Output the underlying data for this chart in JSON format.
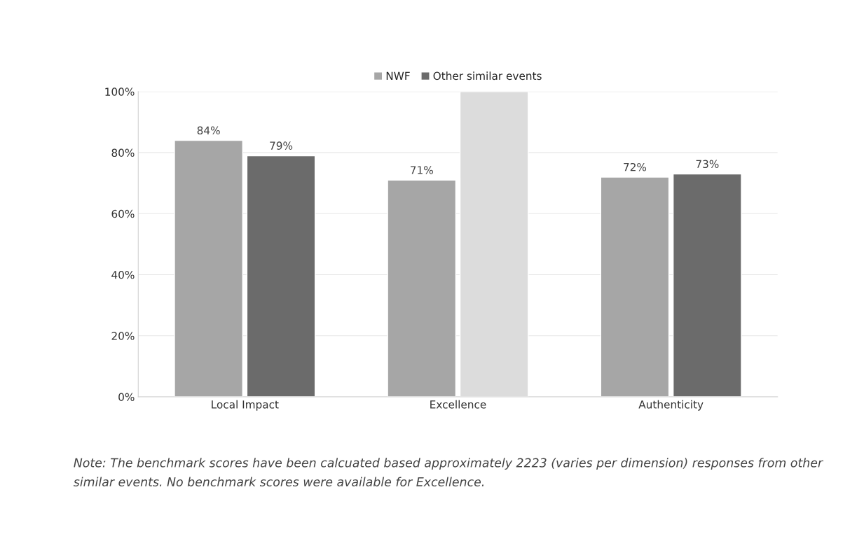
{
  "chart_data": {
    "type": "bar",
    "categories": [
      "Local Impact",
      "Excellence",
      "Authenticity"
    ],
    "series": [
      {
        "name": "NWF",
        "color": "#a6a6a6",
        "values": [
          84,
          71,
          72
        ],
        "value_labels": [
          "84%",
          "71%",
          "72%"
        ]
      },
      {
        "name": "Other similar events",
        "color": "#6b6b6b",
        "colors": [
          "#6b6b6b",
          "#dcdcdc",
          "#6b6b6b"
        ],
        "values": [
          79,
          100,
          73
        ],
        "value_labels": [
          "79%",
          null,
          "73%"
        ]
      }
    ],
    "ylim": [
      0,
      100
    ],
    "yticks": [
      {
        "value": 0,
        "label": "0%"
      },
      {
        "value": 20,
        "label": "20%"
      },
      {
        "value": 40,
        "label": "40%"
      },
      {
        "value": 60,
        "label": "60%"
      },
      {
        "value": 80,
        "label": "80%"
      },
      {
        "value": 100,
        "label": "100%"
      }
    ],
    "grid": "y",
    "legend": "top",
    "annotations": [
      "Note: The benchmark scores have been calcuated based approximately 2223 (varies per dimension) responses from other similar events. No benchmark scores were available for Excellence."
    ]
  }
}
